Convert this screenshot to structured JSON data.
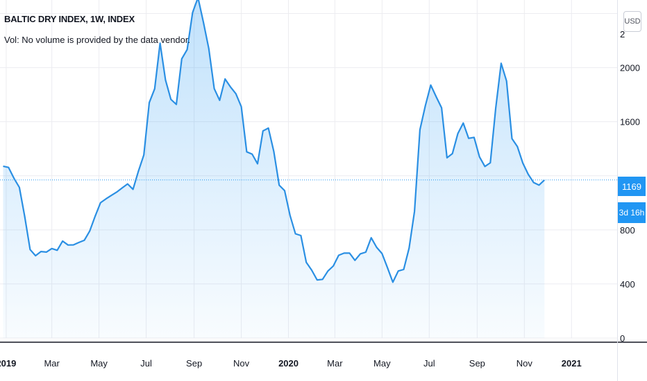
{
  "header": {
    "title": "BALTIC DRY INDEX, 1W, INDEX",
    "subtitle": "Vol: No volume is provided by the data vendor."
  },
  "currency_button": "USD",
  "last_price_label": "1169",
  "countdown_label": "3d 16h",
  "colors": {
    "line": "#2a8fe3",
    "fill": "#2196f3",
    "grid": "#ececf0",
    "axis": "#131722"
  },
  "chart_data": {
    "type": "area",
    "title": "BALTIC DRY INDEX, 1W, INDEX",
    "y_ticks": [
      0,
      400,
      800,
      1600,
      2000
    ],
    "y_top_label_partial": "2",
    "ylim": [
      0,
      2500
    ],
    "grid": true,
    "x_tick_labels": [
      "2019",
      "Mar",
      "May",
      "Jul",
      "Sep",
      "Nov",
      "2020",
      "Mar",
      "May",
      "Jul",
      "Sep",
      "Nov",
      "2021"
    ],
    "x_tick_bold": [
      true,
      false,
      false,
      false,
      false,
      false,
      true,
      false,
      false,
      false,
      false,
      false,
      true
    ],
    "x_ticks": [
      "2019-01-01",
      "2019-03-01",
      "2019-05-01",
      "2019-07-01",
      "2019-09-01",
      "2019-11-01",
      "2020-01-01",
      "2020-03-01",
      "2020-05-01",
      "2020-07-01",
      "2020-09-01",
      "2020-11-01",
      "2021-01-01"
    ],
    "xlim": [
      "2018-12-24",
      "2021-03-01"
    ],
    "last_value": 1169,
    "series": [
      {
        "points": [
          [
            "2018-12-28",
            1271
          ],
          [
            "2019-01-04",
            1262
          ],
          [
            "2019-01-11",
            1182
          ],
          [
            "2019-01-18",
            1114
          ],
          [
            "2019-01-25",
            899
          ],
          [
            "2019-02-01",
            654
          ],
          [
            "2019-02-08",
            609
          ],
          [
            "2019-02-15",
            640
          ],
          [
            "2019-02-22",
            636
          ],
          [
            "2019-03-01",
            662
          ],
          [
            "2019-03-08",
            649
          ],
          [
            "2019-03-15",
            717
          ],
          [
            "2019-03-22",
            688
          ],
          [
            "2019-03-29",
            689
          ],
          [
            "2019-04-05",
            707
          ],
          [
            "2019-04-12",
            723
          ],
          [
            "2019-04-19",
            791
          ],
          [
            "2019-04-26",
            900
          ],
          [
            "2019-05-03",
            1001
          ],
          [
            "2019-05-10",
            1029
          ],
          [
            "2019-05-17",
            1055
          ],
          [
            "2019-05-24",
            1080
          ],
          [
            "2019-05-31",
            1110
          ],
          [
            "2019-06-07",
            1140
          ],
          [
            "2019-06-14",
            1100
          ],
          [
            "2019-06-21",
            1234
          ],
          [
            "2019-06-28",
            1354
          ],
          [
            "2019-07-05",
            1741
          ],
          [
            "2019-07-12",
            1843
          ],
          [
            "2019-07-19",
            2181
          ],
          [
            "2019-07-26",
            1909
          ],
          [
            "2019-08-02",
            1765
          ],
          [
            "2019-08-09",
            1728
          ],
          [
            "2019-08-16",
            2065
          ],
          [
            "2019-08-23",
            2133
          ],
          [
            "2019-08-30",
            2406
          ],
          [
            "2019-09-06",
            2518
          ],
          [
            "2019-09-13",
            2336
          ],
          [
            "2019-09-20",
            2140
          ],
          [
            "2019-09-27",
            1845
          ],
          [
            "2019-10-04",
            1758
          ],
          [
            "2019-10-11",
            1916
          ],
          [
            "2019-10-18",
            1857
          ],
          [
            "2019-10-25",
            1807
          ],
          [
            "2019-11-01",
            1711
          ],
          [
            "2019-11-08",
            1377
          ],
          [
            "2019-11-15",
            1360
          ],
          [
            "2019-11-22",
            1289
          ],
          [
            "2019-11-29",
            1532
          ],
          [
            "2019-12-06",
            1553
          ],
          [
            "2019-12-13",
            1380
          ],
          [
            "2019-12-20",
            1130
          ],
          [
            "2019-12-27",
            1090
          ],
          [
            "2020-01-03",
            907
          ],
          [
            "2020-01-10",
            771
          ],
          [
            "2020-01-17",
            758
          ],
          [
            "2020-01-24",
            560
          ],
          [
            "2020-01-31",
            502
          ],
          [
            "2020-02-07",
            430
          ],
          [
            "2020-02-14",
            434
          ],
          [
            "2020-02-21",
            496
          ],
          [
            "2020-02-28",
            533
          ],
          [
            "2020-03-06",
            612
          ],
          [
            "2020-03-13",
            628
          ],
          [
            "2020-03-20",
            628
          ],
          [
            "2020-03-27",
            575
          ],
          [
            "2020-04-03",
            623
          ],
          [
            "2020-04-10",
            635
          ],
          [
            "2020-04-17",
            742
          ],
          [
            "2020-04-24",
            671
          ],
          [
            "2020-05-01",
            625
          ],
          [
            "2020-05-08",
            521
          ],
          [
            "2020-05-15",
            413
          ],
          [
            "2020-05-22",
            496
          ],
          [
            "2020-05-29",
            507
          ],
          [
            "2020-06-05",
            665
          ],
          [
            "2020-06-12",
            937
          ],
          [
            "2020-06-19",
            1540
          ],
          [
            "2020-06-26",
            1718
          ],
          [
            "2020-07-03",
            1871
          ],
          [
            "2020-07-10",
            1785
          ],
          [
            "2020-07-17",
            1703
          ],
          [
            "2020-07-24",
            1333
          ],
          [
            "2020-07-31",
            1364
          ],
          [
            "2020-08-07",
            1512
          ],
          [
            "2020-08-14",
            1590
          ],
          [
            "2020-08-21",
            1477
          ],
          [
            "2020-08-28",
            1484
          ],
          [
            "2020-09-04",
            1340
          ],
          [
            "2020-09-11",
            1269
          ],
          [
            "2020-09-18",
            1296
          ],
          [
            "2020-09-25",
            1701
          ],
          [
            "2020-10-02",
            2032
          ],
          [
            "2020-10-09",
            1901
          ],
          [
            "2020-10-16",
            1475
          ],
          [
            "2020-10-23",
            1416
          ],
          [
            "2020-10-30",
            1294
          ],
          [
            "2020-11-06",
            1211
          ],
          [
            "2020-11-13",
            1150
          ],
          [
            "2020-11-20",
            1131
          ],
          [
            "2020-11-27",
            1169
          ]
        ]
      }
    ]
  }
}
